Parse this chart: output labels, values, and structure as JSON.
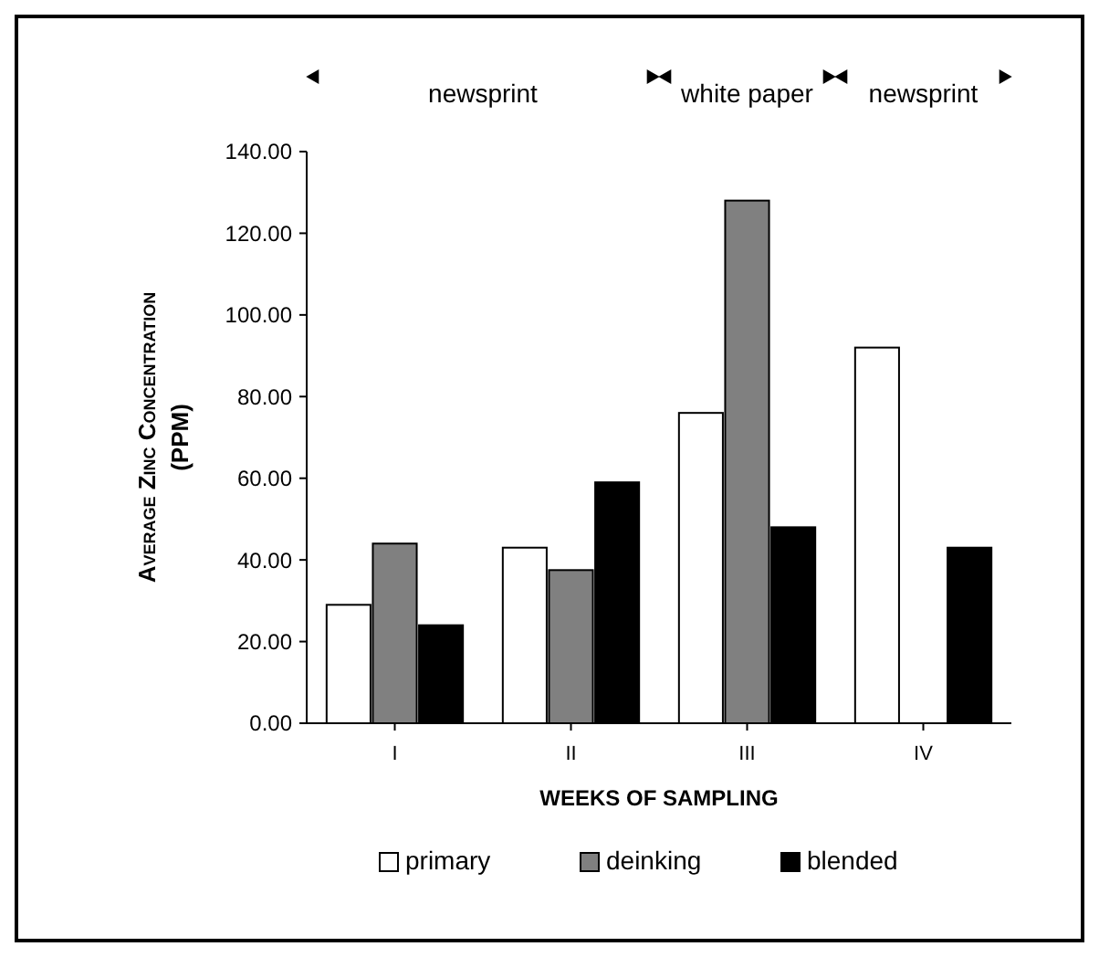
{
  "chart_data": {
    "type": "bar",
    "xlabel": "WEEKS OF SAMPLING",
    "ylabel": "Average Zinc Concentration (PPM)",
    "annotations": [
      "newsprint",
      "white paper",
      "newsprint"
    ],
    "categories": [
      "I",
      "II",
      "III",
      "IV"
    ],
    "series": [
      {
        "name": "primary",
        "color": "#ffffff",
        "values": [
          29,
          43,
          76,
          92
        ]
      },
      {
        "name": "deinking",
        "color": "#808080",
        "values": [
          44,
          37.5,
          128,
          null
        ]
      },
      {
        "name": "blended",
        "color": "#000000",
        "values": [
          24,
          59,
          48,
          43
        ]
      }
    ],
    "ylim": [
      0,
      140
    ],
    "yticks": [
      {
        "value": 0,
        "label": "0.00"
      },
      {
        "value": 20,
        "label": "20.00"
      },
      {
        "value": 40,
        "label": "40.00"
      },
      {
        "value": 60,
        "label": "60.00"
      },
      {
        "value": 80,
        "label": "80.00"
      },
      {
        "value": 100,
        "label": "100.00"
      },
      {
        "value": 120,
        "label": "120.00"
      },
      {
        "value": 140,
        "label": "140.00"
      }
    ],
    "legend": "bottom"
  }
}
